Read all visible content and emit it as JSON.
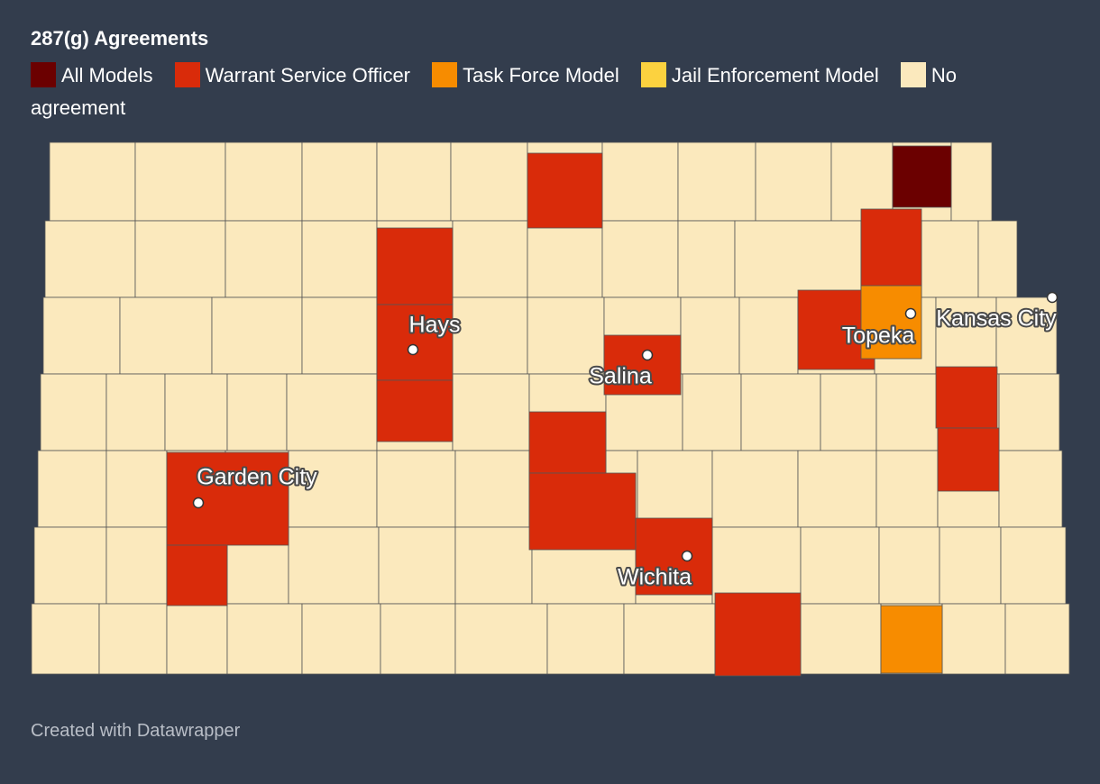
{
  "header": {
    "title": "287(g) Agreements"
  },
  "legend": [
    {
      "label": "All Models",
      "color": "#6b0000"
    },
    {
      "label": "Warrant Service Officer",
      "color": "#d92b0a"
    },
    {
      "label": "Task Force Model",
      "color": "#f78c00"
    },
    {
      "label": "Jail Enforcement Model",
      "color": "#fcd23f"
    },
    {
      "label": "No agreement",
      "color": "#fbe9bd"
    }
  ],
  "cities": [
    {
      "label": "Hays"
    },
    {
      "label": "Salina"
    },
    {
      "label": "Garden City"
    },
    {
      "label": "Wichita"
    },
    {
      "label": "Topeka"
    },
    {
      "label": "Kansas City"
    }
  ],
  "footer": "Created with Datawrapper"
}
